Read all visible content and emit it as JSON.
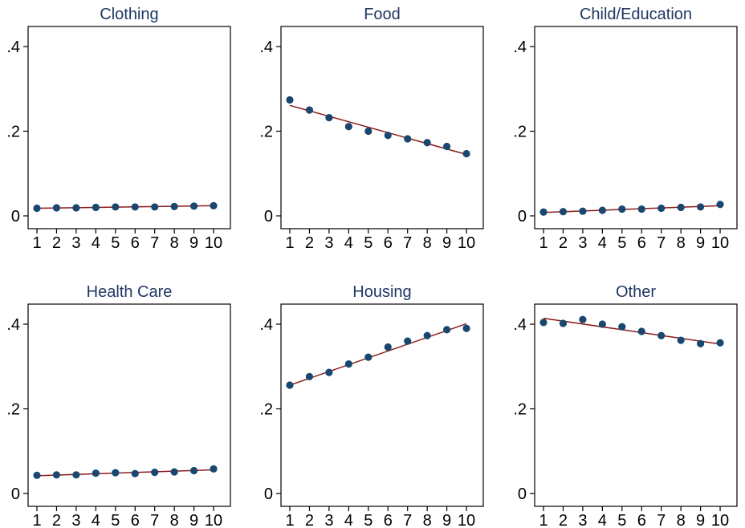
{
  "colors": {
    "title": "#1f3864",
    "marker": "#1a476f",
    "fit_line": "#8b1a1a",
    "axis": "#000000",
    "background": "#ffffff"
  },
  "chart_data": [
    {
      "type": "scatter",
      "title": "Clothing",
      "x": [
        1,
        2,
        3,
        4,
        5,
        6,
        7,
        8,
        9,
        10
      ],
      "x_tick_labels": [
        "1",
        "2",
        "3",
        "4",
        "5",
        "6",
        "7",
        "8",
        "9",
        "10"
      ],
      "y_tick_values": [
        0,
        0.2,
        0.4
      ],
      "y_tick_labels": [
        "0",
        ".2",
        ".4"
      ],
      "ylim": [
        0,
        0.44
      ],
      "xlim": [
        0.5,
        10.5
      ],
      "values": [
        0.018,
        0.019,
        0.019,
        0.02,
        0.021,
        0.021,
        0.021,
        0.022,
        0.023,
        0.024
      ],
      "fit_line": [
        0.018,
        0.024
      ],
      "grid": false
    },
    {
      "type": "scatter",
      "title": "Food",
      "x": [
        1,
        2,
        3,
        4,
        5,
        6,
        7,
        8,
        9,
        10
      ],
      "x_tick_labels": [
        "1",
        "2",
        "3",
        "4",
        "5",
        "6",
        "7",
        "8",
        "9",
        "10"
      ],
      "y_tick_values": [
        0,
        0.2,
        0.4
      ],
      "y_tick_labels": [
        "0",
        ".2",
        ".4"
      ],
      "ylim": [
        0,
        0.44
      ],
      "xlim": [
        0.5,
        10.5
      ],
      "values": [
        0.274,
        0.25,
        0.232,
        0.211,
        0.2,
        0.19,
        0.182,
        0.173,
        0.164,
        0.147
      ],
      "fit_line": [
        0.261,
        0.145
      ],
      "grid": false
    },
    {
      "type": "scatter",
      "title": "Child/Education",
      "x": [
        1,
        2,
        3,
        4,
        5,
        6,
        7,
        8,
        9,
        10
      ],
      "x_tick_labels": [
        "1",
        "2",
        "3",
        "4",
        "5",
        "6",
        "7",
        "8",
        "9",
        "10"
      ],
      "y_tick_values": [
        0,
        0.2,
        0.4
      ],
      "y_tick_labels": [
        "0",
        ".2",
        ".4"
      ],
      "ylim": [
        0,
        0.44
      ],
      "xlim": [
        0.5,
        10.5
      ],
      "values": [
        0.009,
        0.01,
        0.011,
        0.013,
        0.016,
        0.016,
        0.018,
        0.02,
        0.021,
        0.027
      ],
      "fit_line": [
        0.008,
        0.024
      ],
      "grid": false
    },
    {
      "type": "scatter",
      "title": "Health Care",
      "x": [
        1,
        2,
        3,
        4,
        5,
        6,
        7,
        8,
        9,
        10
      ],
      "x_tick_labels": [
        "1",
        "2",
        "3",
        "4",
        "5",
        "6",
        "7",
        "8",
        "9",
        "10"
      ],
      "y_tick_values": [
        0,
        0.2,
        0.4
      ],
      "y_tick_labels": [
        "0",
        ".2",
        ".4"
      ],
      "ylim": [
        0,
        0.44
      ],
      "xlim": [
        0.5,
        10.5
      ],
      "values": [
        0.043,
        0.044,
        0.044,
        0.048,
        0.049,
        0.047,
        0.05,
        0.051,
        0.054,
        0.058
      ],
      "fit_line": [
        0.042,
        0.056
      ],
      "grid": false
    },
    {
      "type": "scatter",
      "title": "Housing",
      "x": [
        1,
        2,
        3,
        4,
        5,
        6,
        7,
        8,
        9,
        10
      ],
      "x_tick_labels": [
        "1",
        "2",
        "3",
        "4",
        "5",
        "6",
        "7",
        "8",
        "9",
        "10"
      ],
      "y_tick_values": [
        0,
        0.2,
        0.4
      ],
      "y_tick_labels": [
        "0",
        ".2",
        ".4"
      ],
      "ylim": [
        0,
        0.44
      ],
      "xlim": [
        0.5,
        10.5
      ],
      "values": [
        0.256,
        0.276,
        0.286,
        0.306,
        0.322,
        0.346,
        0.36,
        0.373,
        0.387,
        0.39
      ],
      "fit_line": [
        0.256,
        0.401
      ],
      "grid": false
    },
    {
      "type": "scatter",
      "title": "Other",
      "x": [
        1,
        2,
        3,
        4,
        5,
        6,
        7,
        8,
        9,
        10
      ],
      "x_tick_labels": [
        "1",
        "2",
        "3",
        "4",
        "5",
        "6",
        "7",
        "8",
        "9",
        "10"
      ],
      "y_tick_values": [
        0,
        0.2,
        0.4
      ],
      "y_tick_labels": [
        "0",
        ".2",
        ".4"
      ],
      "ylim": [
        0,
        0.44
      ],
      "xlim": [
        0.5,
        10.5
      ],
      "values": [
        0.404,
        0.402,
        0.411,
        0.4,
        0.394,
        0.383,
        0.373,
        0.362,
        0.354,
        0.356
      ],
      "fit_line": [
        0.414,
        0.353
      ],
      "grid": false
    }
  ]
}
